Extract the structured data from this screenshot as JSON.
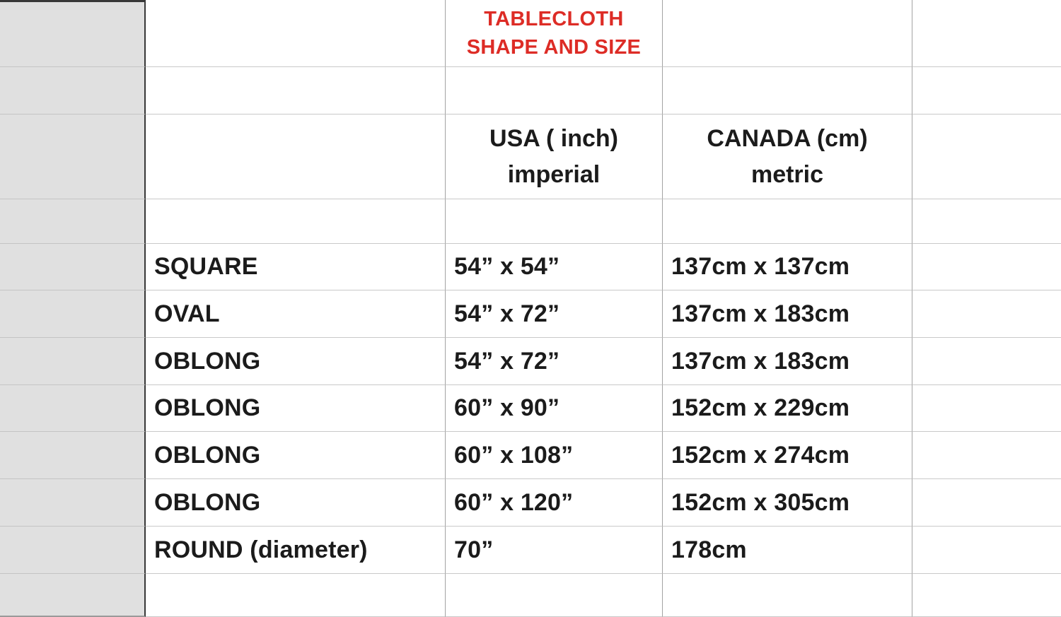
{
  "colors": {
    "title_red": "#dd2c26",
    "text_black": "#1b1b1b",
    "row_header_bg": "#e0e0e0",
    "dark_border": "#383838",
    "h_gridline": "#c9c9c9",
    "v_gridline": "#a3a3a3"
  },
  "header": {
    "title_line1": "TABLECLOTH",
    "title_line2": "SHAPE AND SIZE",
    "usa_line1": "USA ( inch)",
    "usa_line2": "imperial",
    "canada_line1": "CANADA (cm)",
    "canada_line2": "metric"
  },
  "rows": [
    {
      "shape": "SQUARE",
      "usa": "54” x 54”",
      "canada": "137cm x 137cm"
    },
    {
      "shape": "OVAL",
      "usa": "54” x 72”",
      "canada": "137cm x 183cm"
    },
    {
      "shape": "OBLONG",
      "usa": "54” x 72”",
      "canada": "137cm x 183cm"
    },
    {
      "shape": "OBLONG",
      "usa": "60” x 90”",
      "canada": "152cm x 229cm"
    },
    {
      "shape": "OBLONG",
      "usa": "60” x 108”",
      "canada": "152cm x 274cm"
    },
    {
      "shape": "OBLONG",
      "usa": "60” x 120”",
      "canada": "152cm x 305cm"
    },
    {
      "shape": "ROUND (diameter)",
      "usa": "70”",
      "canada": "178cm"
    }
  ]
}
